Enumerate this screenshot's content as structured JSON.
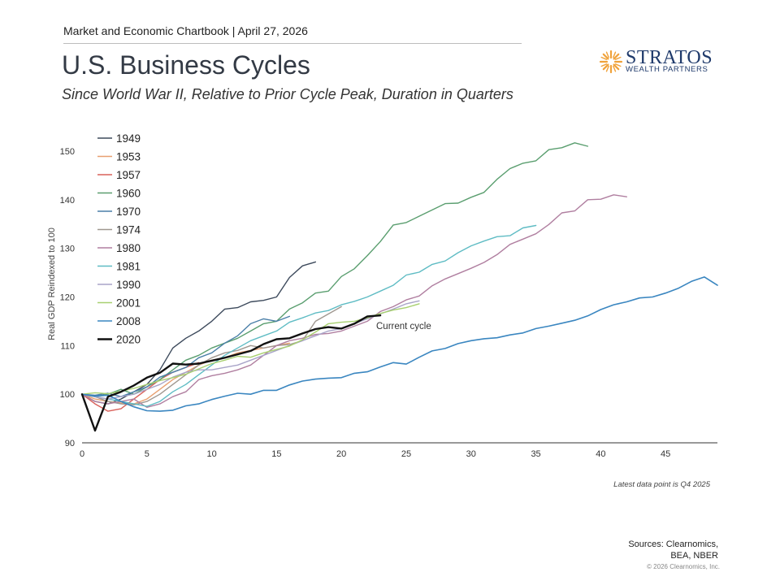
{
  "header": {
    "chartbook": "Market and Economic Chartbook | April 27, 2026",
    "title": "U.S. Business Cycles",
    "subtitle": "Since World War II, Relative to Prior Cycle Peak, Duration in Quarters"
  },
  "logo": {
    "name": "STRATOS",
    "sub": "WEALTH PARTNERS",
    "icon": "sunburst-icon",
    "color": "#1f3a6b",
    "accent": "#f0a23a"
  },
  "footer": {
    "latest": "Latest data point is Q4 2025",
    "sources_line1": "Sources: Clearnomics,",
    "sources_line2": "BEA, NBER",
    "copyright": "© 2026 Clearnomics, Inc."
  },
  "chart_data": {
    "type": "line",
    "title": "U.S. Business Cycles",
    "ylabel": "Real GDP Reindexed to 100",
    "xlabel": "",
    "xlim": [
      0,
      49
    ],
    "ylim": [
      90,
      153
    ],
    "x_ticks": [
      0,
      5,
      10,
      15,
      20,
      25,
      30,
      35,
      40,
      45
    ],
    "y_ticks": [
      90,
      100,
      110,
      120,
      130,
      140,
      150
    ],
    "grid": false,
    "legend_position": "top-left",
    "annotation": "Current cycle",
    "series": [
      {
        "name": "1949",
        "color": "#3d4a5c",
        "width": 1.4,
        "values": [
          100,
          98.5,
          98,
          99,
          100.5,
          102,
          105,
          109.5,
          111.5,
          113,
          115,
          117.5,
          117.8,
          119,
          119.3,
          120,
          124,
          126.4,
          127.2
        ]
      },
      {
        "name": "1953",
        "color": "#e8a070",
        "width": 1.4,
        "values": [
          100,
          99,
          98.5,
          98.2,
          98,
          99,
          101,
          103,
          104.5,
          106,
          107,
          107.5,
          108.5,
          109,
          109.5,
          110,
          110.5
        ]
      },
      {
        "name": "1957",
        "color": "#d9605a",
        "width": 1.4,
        "values": [
          100,
          98,
          96.5,
          97,
          99,
          101,
          103,
          104.5,
          105.5,
          106.5
        ]
      },
      {
        "name": "1960",
        "color": "#5a9e6f",
        "width": 1.4,
        "values": [
          100,
          99.5,
          100,
          101,
          100,
          101.5,
          103,
          105,
          107,
          108,
          109.5,
          110.5,
          111.5,
          113,
          114.5,
          115,
          117.5,
          118.8,
          120.8,
          121.2,
          124.2,
          125.8,
          128.5,
          131.4,
          134.8,
          135.3,
          136.6,
          137.9,
          139.2,
          139.3,
          140.5,
          141.5,
          144.2,
          146.4,
          147.5,
          148,
          150.3,
          150.7,
          151.7,
          151
        ]
      },
      {
        "name": "1970",
        "color": "#4a7fa8",
        "width": 1.4,
        "values": [
          100,
          99.8,
          100.2,
          99.5,
          100.5,
          101.5,
          103.5,
          104.5,
          105.5,
          107.5,
          108.5,
          110.5,
          112,
          114.5,
          115.5,
          115,
          116
        ]
      },
      {
        "name": "1974",
        "color": "#a09890",
        "width": 1.4,
        "values": [
          100,
          99.5,
          98.5,
          98,
          97.8,
          98.5,
          100,
          102,
          104,
          106,
          107.5,
          108.5,
          109,
          110,
          109.5,
          110,
          110.2,
          111,
          115,
          116.5,
          118
        ]
      },
      {
        "name": "1980",
        "color": "#b07fa0",
        "width": 1.4,
        "values": [
          100,
          98.5,
          98,
          98.5,
          99,
          97.3,
          98,
          99.5,
          100.5,
          103,
          103.8,
          104.3,
          105,
          106,
          108,
          110,
          111,
          111.5,
          112.3,
          112.5,
          113,
          114,
          115,
          117,
          118,
          119.4,
          120.2,
          122.3,
          123.7,
          124.8,
          125.9,
          127.1,
          128.7,
          130.8,
          131.9,
          133,
          134.9,
          137.3,
          137.7,
          140,
          140.1,
          141,
          140.6
        ]
      },
      {
        "name": "1981",
        "color": "#5fbcc4",
        "width": 1.4,
        "values": [
          100,
          99.5,
          99,
          98.5,
          98,
          97.5,
          98.5,
          100.5,
          102,
          104,
          106,
          108,
          109.5,
          111,
          112,
          113,
          114.8,
          115.7,
          116.7,
          117.2,
          118.4,
          119.1,
          120,
          121.2,
          122.4,
          124.5,
          125.1,
          126.7,
          127.4,
          129.1,
          130.5,
          131.5,
          132.4,
          132.6,
          134.2,
          134.7
        ]
      },
      {
        "name": "1990",
        "color": "#a8a4c8",
        "width": 1.4,
        "values": [
          100,
          99.5,
          99,
          99.5,
          100,
          101,
          102,
          103.5,
          104.5,
          105,
          105,
          105.5,
          106,
          107,
          108,
          109,
          110,
          111,
          112,
          113,
          113.5,
          114.5,
          115.5,
          116.5,
          117.5,
          118.6,
          119.2
        ]
      },
      {
        "name": "2001",
        "color": "#a8d070",
        "width": 1.4,
        "values": [
          100,
          100.3,
          100.1,
          100.6,
          101.2,
          102,
          102.8,
          103.4,
          104.1,
          105.2,
          106.3,
          107,
          107.8,
          107.6,
          108.5,
          109.2,
          109.9,
          111.2,
          112.8,
          114.5,
          114.8,
          115,
          115.7,
          116.6,
          117.3,
          117.8,
          118.6
        ]
      },
      {
        "name": "2008",
        "color": "#3a86c0",
        "width": 1.6,
        "values": [
          100,
          99.6,
          99.8,
          98.5,
          97.4,
          96.6,
          96.5,
          96.7,
          97.6,
          98,
          98.9,
          99.6,
          100.2,
          100,
          100.8,
          100.8,
          101.9,
          102.7,
          103.1,
          103.3,
          103.4,
          104.3,
          104.6,
          105.6,
          106.5,
          106.2,
          107.6,
          108.9,
          109.4,
          110.4,
          111,
          111.4,
          111.6,
          112.2,
          112.6,
          113.5,
          114,
          114.6,
          115.2,
          116.1,
          117.4,
          118.4,
          119,
          119.8,
          120,
          120.8,
          121.8,
          123.2,
          124.1,
          122.4
        ]
      },
      {
        "name": "2020",
        "color": "#111111",
        "width": 2.4,
        "values": [
          100,
          92.5,
          99.5,
          100.5,
          101.8,
          103.4,
          104.4,
          106.3,
          106.1,
          106.3,
          106.9,
          107.5,
          108.2,
          108.9,
          110.3,
          111.3,
          111.5,
          112.5,
          113.4,
          113.8,
          113.5,
          114.5,
          116,
          116.2
        ]
      }
    ]
  }
}
